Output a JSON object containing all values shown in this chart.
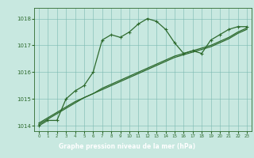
{
  "line1_x": [
    0,
    1,
    2,
    3,
    4,
    5,
    6,
    7,
    8,
    9,
    10,
    11,
    12,
    13,
    14,
    15,
    16,
    17,
    18,
    19,
    20,
    21,
    22,
    23
  ],
  "line1_y": [
    1014.0,
    1014.2,
    1014.2,
    1015.0,
    1015.3,
    1015.5,
    1016.0,
    1017.2,
    1017.4,
    1017.3,
    1017.5,
    1017.8,
    1018.0,
    1017.9,
    1017.6,
    1017.1,
    1016.7,
    1016.8,
    1016.7,
    1017.2,
    1017.4,
    1017.6,
    1017.7,
    1017.7
  ],
  "line2_x": [
    0,
    1,
    2,
    3,
    4,
    5,
    6,
    7,
    8,
    9,
    10,
    11,
    12,
    13,
    14,
    15,
    16,
    17,
    18,
    19,
    20,
    21,
    22,
    23
  ],
  "line2_y": [
    1014.05,
    1014.25,
    1014.45,
    1014.65,
    1014.85,
    1015.05,
    1015.2,
    1015.4,
    1015.55,
    1015.7,
    1015.85,
    1016.0,
    1016.15,
    1016.3,
    1016.45,
    1016.6,
    1016.7,
    1016.8,
    1016.9,
    1017.0,
    1017.15,
    1017.3,
    1017.5,
    1017.65
  ],
  "line3_x": [
    0,
    1,
    2,
    3,
    4,
    5,
    6,
    7,
    8,
    9,
    10,
    11,
    12,
    13,
    14,
    15,
    16,
    17,
    18,
    19,
    20,
    21,
    22,
    23
  ],
  "line3_y": [
    1014.1,
    1014.3,
    1014.5,
    1014.7,
    1014.9,
    1015.05,
    1015.2,
    1015.35,
    1015.5,
    1015.65,
    1015.8,
    1015.95,
    1016.1,
    1016.25,
    1016.4,
    1016.55,
    1016.65,
    1016.75,
    1016.85,
    1016.95,
    1017.1,
    1017.25,
    1017.45,
    1017.6
  ],
  "line_color": "#2d6a2d",
  "marker_color": "#2d6a2d",
  "bg_color": "#c8e8e0",
  "grid_color": "#7ab8b0",
  "border_color": "#2d6a2d",
  "xlabel": "Graphe pression niveau de la mer (hPa)",
  "xlabel_bg": "#3a7a3a",
  "xlabel_text_color": "#ffffff",
  "ylim_min": 1013.8,
  "ylim_max": 1018.4,
  "xlim_min": -0.5,
  "xlim_max": 23.5,
  "yticks": [
    1014,
    1015,
    1016,
    1017,
    1018
  ],
  "xticks": [
    0,
    1,
    2,
    3,
    4,
    5,
    6,
    7,
    8,
    9,
    10,
    11,
    12,
    13,
    14,
    15,
    16,
    17,
    18,
    19,
    20,
    21,
    22,
    23
  ]
}
